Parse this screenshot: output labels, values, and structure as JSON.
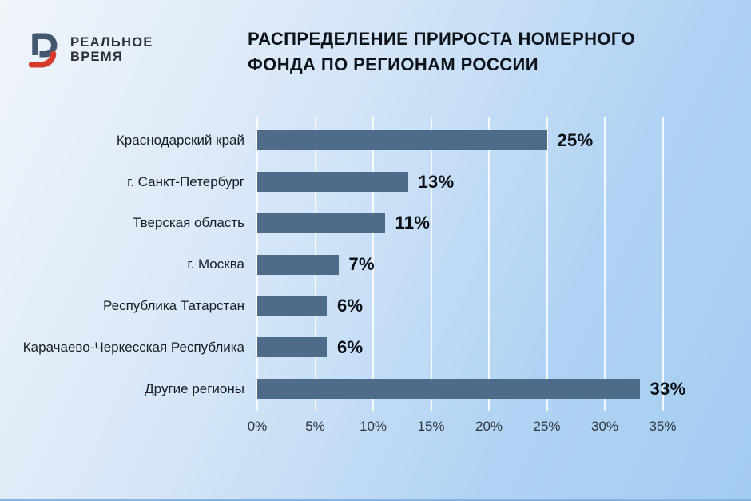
{
  "brand": {
    "line1": "РЕАЛЬНОЕ",
    "line2": "ВРЕМЯ"
  },
  "title": {
    "line1": "РАСПРЕДЕЛЕНИЕ ПРИРОСТА НОМЕРНОГО",
    "line2": "ФОНДА ПО РЕГИОНАМ РОССИИ"
  },
  "chart_data": {
    "type": "bar",
    "orientation": "horizontal",
    "title": "Распределение прироста номерного фонда по регионам России",
    "categories": [
      "Краснодарский край",
      "г. Санкт-Петербург",
      "Тверская область",
      "г. Москва",
      "Республика Татарстан",
      "Карачаево-Черкесская Республика",
      "Другие регионы"
    ],
    "values": [
      25,
      13,
      11,
      7,
      6,
      6,
      33
    ],
    "value_labels": [
      "25%",
      "13%",
      "11%",
      "7%",
      "6%",
      "6%",
      "33%"
    ],
    "x_ticks": [
      0,
      5,
      10,
      15,
      20,
      25,
      30,
      35
    ],
    "x_tick_labels": [
      "0%",
      "5%",
      "10%",
      "15%",
      "20%",
      "25%",
      "30%",
      "35%"
    ],
    "xlim": [
      0,
      35
    ],
    "grid": true,
    "legend": false,
    "bar_color": "#4e6c89",
    "gridline_color": "rgba(255,255,255,0.85)"
  },
  "colors": {
    "background_start": "#f1f5fa",
    "background_end": "#a3ccf2",
    "logo_blue": "#41586e",
    "logo_red": "#d53a2c",
    "title_text": "#0d1218",
    "label_text": "#181c23",
    "tick_text": "#30353d",
    "bottom_edge": "#85b3e4"
  }
}
